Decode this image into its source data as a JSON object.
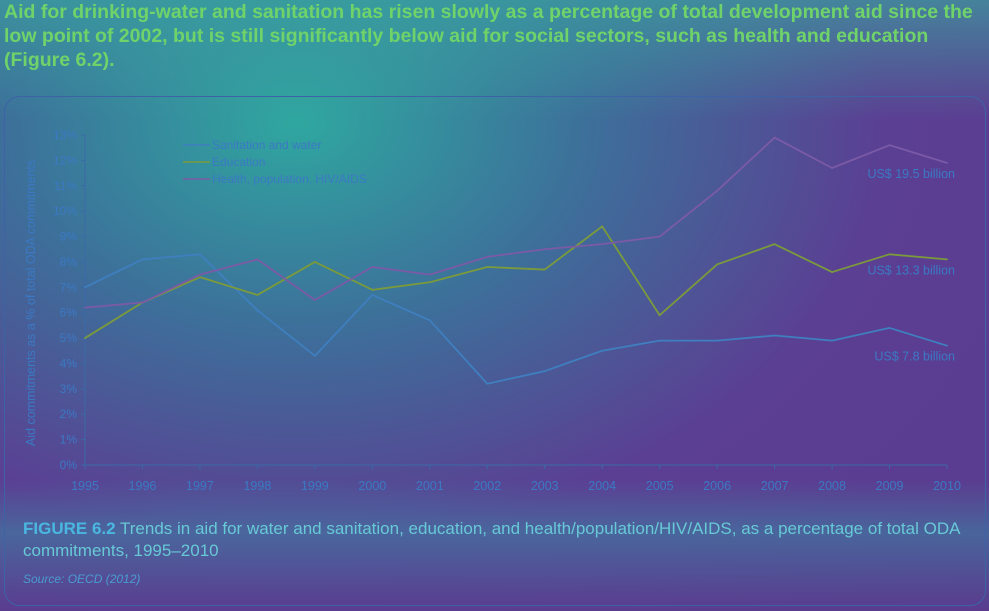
{
  "intro_text": "Aid for drinking-water and sanitation has risen slowly as a percentage of total development aid since the low point of 2002, but is still significantly below aid for social sectors, such as health and education (Figure 6.2).",
  "caption": {
    "figure_label": "FIGURE 6.2",
    "text": "Trends in aid for water and sanitation, education, and health/population/HIV/AIDS, as a percentage of total ODA commitments, 1995–2010"
  },
  "source": "Source: OECD (2012)",
  "colors": {
    "sanitation": "#3f7fbf",
    "education": "#7a9a3c",
    "health": "#7b5aa6",
    "axis": "#3a6aa6",
    "text": "#3b79c4"
  },
  "chart_data": {
    "type": "line",
    "title": "",
    "xlabel": "",
    "ylabel": "Aid commitments as a % of total ODA commitments",
    "x": [
      "1995",
      "1996",
      "1997",
      "1998",
      "1999",
      "2000",
      "2001",
      "2002",
      "2003",
      "2004",
      "2005",
      "2006",
      "2007",
      "2008",
      "2009",
      "2010"
    ],
    "ylim": [
      0,
      13
    ],
    "yticks": [
      "0%",
      "1%",
      "2%",
      "3%",
      "4%",
      "5%",
      "6%",
      "7%",
      "8%",
      "9%",
      "10%",
      "11%",
      "12%",
      "13%"
    ],
    "grid": false,
    "legend_position": "top-left",
    "series": [
      {
        "name": "Sanitation and water",
        "color_key": "sanitation",
        "values": [
          7.0,
          8.1,
          8.3,
          6.1,
          4.3,
          6.7,
          5.7,
          3.2,
          3.7,
          4.5,
          4.9,
          4.9,
          5.1,
          4.9,
          5.4,
          4.7
        ]
      },
      {
        "name": "Education",
        "color_key": "education",
        "values": [
          5.0,
          6.4,
          7.4,
          6.7,
          8.0,
          6.9,
          7.2,
          7.8,
          7.7,
          9.4,
          5.9,
          7.9,
          8.7,
          7.6,
          8.3,
          8.1
        ]
      },
      {
        "name": "Health, population, HIV/AIDS",
        "color_key": "health",
        "values": [
          6.2,
          6.4,
          7.5,
          8.1,
          6.5,
          7.8,
          7.5,
          8.2,
          8.5,
          8.7,
          9.0,
          10.8,
          12.9,
          11.7,
          12.6,
          11.9
        ]
      }
    ],
    "annotations": [
      {
        "text": "US$ 19.5 billion",
        "series": "Health, population, HIV/AIDS"
      },
      {
        "text": "US$ 13.3 billion",
        "series": "Education"
      },
      {
        "text": "US$ 7.8 billion",
        "series": "Sanitation and water"
      }
    ]
  }
}
